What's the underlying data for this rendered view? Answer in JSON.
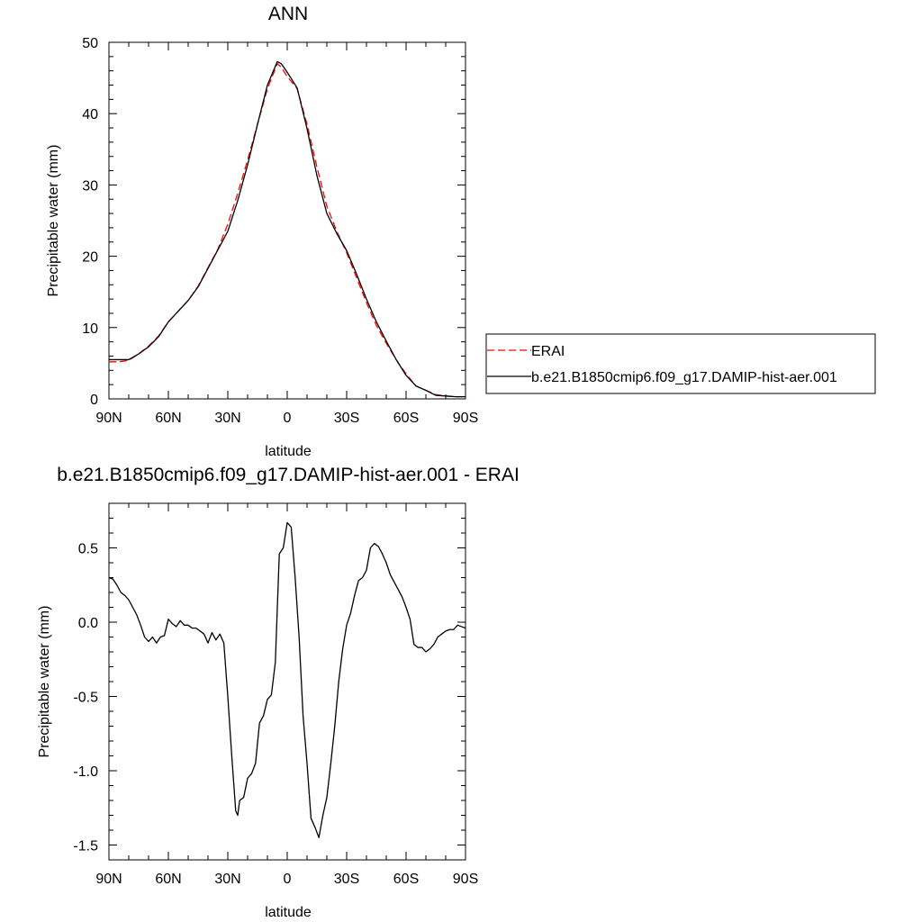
{
  "chart_data": [
    {
      "type": "line",
      "title": "ANN",
      "xlabel": "latitude",
      "ylabel": "Precipitable water (mm)",
      "xlim": [
        -90,
        90
      ],
      "ylim": [
        0,
        50
      ],
      "x_ticks": [
        {
          "value": -90,
          "label": "90N"
        },
        {
          "value": -60,
          "label": "60N"
        },
        {
          "value": -30,
          "label": "30N"
        },
        {
          "value": 0,
          "label": "0"
        },
        {
          "value": 30,
          "label": "30S"
        },
        {
          "value": 60,
          "label": "60S"
        },
        {
          "value": 90,
          "label": "90S"
        }
      ],
      "y_ticks": [
        {
          "value": 0,
          "label": "0"
        },
        {
          "value": 10,
          "label": "10"
        },
        {
          "value": 20,
          "label": "20"
        },
        {
          "value": 30,
          "label": "30"
        },
        {
          "value": 40,
          "label": "40"
        },
        {
          "value": 50,
          "label": "50"
        }
      ],
      "legend_position": "right",
      "series": [
        {
          "name": "ERAI",
          "color": "#ff0000",
          "style": "dashed",
          "x": [
            -90,
            -85,
            -80,
            -75,
            -70,
            -65,
            -60,
            -55,
            -50,
            -45,
            -40,
            -35,
            -30,
            -25,
            -20,
            -15,
            -10,
            -5,
            -3,
            0,
            3,
            5,
            10,
            15,
            20,
            25,
            30,
            35,
            40,
            45,
            50,
            55,
            60,
            65,
            70,
            75,
            80,
            85,
            90
          ],
          "y": [
            5.2,
            5.2,
            5.4,
            6.3,
            7.4,
            8.8,
            10.8,
            12.3,
            13.8,
            15.8,
            18.4,
            21.0,
            24.5,
            28.8,
            33.5,
            38.5,
            43.5,
            47.0,
            46.5,
            45.2,
            44.2,
            43.5,
            38.5,
            32.5,
            27.0,
            23.5,
            20.5,
            17.0,
            13.5,
            10.3,
            7.8,
            5.5,
            3.5,
            1.8,
            1.2,
            0.6,
            0.4,
            0.3,
            0.3
          ]
        },
        {
          "name": "b.e21.B1850cmip6.f09_g17.DAMIP-hist-aer.001",
          "color": "#000000",
          "style": "solid",
          "x": [
            -90,
            -85,
            -80,
            -75,
            -70,
            -65,
            -60,
            -55,
            -50,
            -45,
            -40,
            -35,
            -30,
            -25,
            -20,
            -15,
            -10,
            -5,
            -3,
            0,
            3,
            5,
            10,
            15,
            20,
            25,
            30,
            35,
            40,
            45,
            50,
            55,
            60,
            65,
            70,
            75,
            80,
            85,
            90
          ],
          "y": [
            5.5,
            5.5,
            5.5,
            6.3,
            7.3,
            8.7,
            10.8,
            12.3,
            13.8,
            15.7,
            18.3,
            20.9,
            23.5,
            27.8,
            32.8,
            38.5,
            44.0,
            47.3,
            47.0,
            45.8,
            44.5,
            43.6,
            37.9,
            31.3,
            26.0,
            23.2,
            20.8,
            17.5,
            14.0,
            10.8,
            8.1,
            5.5,
            3.3,
            1.8,
            1.2,
            0.5,
            0.4,
            0.3,
            0.3
          ]
        }
      ]
    },
    {
      "type": "line",
      "title": "b.e21.B1850cmip6.f09_g17.DAMIP-hist-aer.001 - ERAI",
      "xlabel": "latitude",
      "ylabel": "Precipitable water (mm)",
      "xlim": [
        -90,
        90
      ],
      "ylim": [
        -1.6,
        0.8
      ],
      "x_ticks": [
        {
          "value": -90,
          "label": "90N"
        },
        {
          "value": -60,
          "label": "60N"
        },
        {
          "value": -30,
          "label": "30N"
        },
        {
          "value": 0,
          "label": "0"
        },
        {
          "value": 30,
          "label": "30S"
        },
        {
          "value": 60,
          "label": "60S"
        },
        {
          "value": 90,
          "label": "90S"
        }
      ],
      "y_ticks": [
        {
          "value": -1.5,
          "label": "-1.5"
        },
        {
          "value": -1.0,
          "label": "-1.0"
        },
        {
          "value": -0.5,
          "label": "-0.5"
        },
        {
          "value": 0.0,
          "label": "0.0"
        },
        {
          "value": 0.5,
          "label": "0.5"
        }
      ],
      "series": [
        {
          "name": "",
          "color": "#000000",
          "style": "solid",
          "x": [
            -90,
            -88,
            -86,
            -84,
            -82,
            -80,
            -78,
            -76,
            -74,
            -72,
            -70,
            -68,
            -66,
            -64,
            -62,
            -60,
            -58,
            -56,
            -54,
            -52,
            -50,
            -48,
            -46,
            -44,
            -42,
            -40,
            -38,
            -36,
            -34,
            -32,
            -30,
            -28,
            -26,
            -25,
            -24,
            -22,
            -20,
            -18,
            -16,
            -14,
            -12,
            -10,
            -8,
            -6,
            -4,
            -2,
            0,
            2,
            4,
            6,
            8,
            10,
            12,
            14,
            16,
            18,
            20,
            22,
            24,
            26,
            28,
            30,
            32,
            34,
            36,
            38,
            40,
            42,
            44,
            46,
            48,
            50,
            52,
            54,
            56,
            58,
            60,
            62,
            64,
            66,
            68,
            70,
            72,
            74,
            76,
            78,
            80,
            82,
            84,
            86,
            88,
            90
          ],
          "y": [
            0.3,
            0.29,
            0.25,
            0.2,
            0.18,
            0.15,
            0.1,
            0.05,
            -0.02,
            -0.1,
            -0.13,
            -0.1,
            -0.14,
            -0.1,
            -0.09,
            0.02,
            -0.01,
            -0.03,
            0.01,
            -0.02,
            -0.02,
            -0.04,
            -0.04,
            -0.06,
            -0.08,
            -0.14,
            -0.07,
            -0.12,
            -0.08,
            -0.14,
            -0.5,
            -0.9,
            -1.27,
            -1.3,
            -1.2,
            -1.18,
            -1.05,
            -1.02,
            -0.95,
            -0.68,
            -0.63,
            -0.52,
            -0.49,
            -0.27,
            0.46,
            0.5,
            0.67,
            0.64,
            0.3,
            -0.1,
            -0.63,
            -0.95,
            -1.32,
            -1.38,
            -1.45,
            -1.3,
            -1.18,
            -0.95,
            -0.7,
            -0.4,
            -0.18,
            -0.02,
            0.06,
            0.18,
            0.28,
            0.3,
            0.35,
            0.5,
            0.53,
            0.51,
            0.46,
            0.4,
            0.32,
            0.27,
            0.22,
            0.17,
            0.1,
            0.02,
            -0.15,
            -0.17,
            -0.17,
            -0.2,
            -0.18,
            -0.15,
            -0.1,
            -0.08,
            -0.06,
            -0.05,
            -0.05,
            -0.02,
            -0.03,
            -0.04
          ]
        }
      ]
    }
  ]
}
